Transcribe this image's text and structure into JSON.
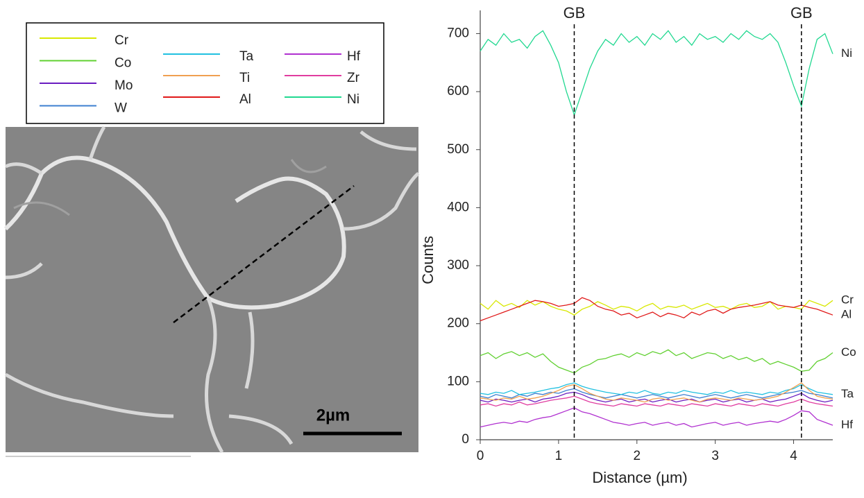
{
  "image": {
    "scale_bar": "2µm"
  },
  "chart_data": {
    "type": "line",
    "xlabel": "Distance (µm)",
    "ylabel": "Counts",
    "xlim": [
      0,
      4.5
    ],
    "xticks": [
      0,
      1,
      2,
      3,
      4
    ],
    "ylim": [
      0,
      740
    ],
    "yticks": [
      0,
      100,
      200,
      300,
      400,
      500,
      600,
      700
    ],
    "x": [
      0,
      0.1,
      0.2,
      0.3,
      0.4,
      0.5,
      0.6,
      0.7,
      0.8,
      0.9,
      1,
      1.1,
      1.2,
      1.3,
      1.4,
      1.5,
      1.6,
      1.7,
      1.8,
      1.9,
      2,
      2.1,
      2.2,
      2.3,
      2.4,
      2.5,
      2.6,
      2.7,
      2.8,
      2.9,
      3,
      3.1,
      3.2,
      3.3,
      3.4,
      3.5,
      3.6,
      3.7,
      3.8,
      3.9,
      4,
      4.1,
      4.2,
      4.3,
      4.4,
      4.5
    ],
    "annotations": [
      {
        "x": 1.2,
        "label": "GB"
      },
      {
        "x": 4.1,
        "label": "GB"
      }
    ],
    "end_labels": [
      "Ni",
      "Cr",
      "Al",
      "Co",
      "Ta",
      "Hf"
    ],
    "series": [
      {
        "name": "Cr",
        "color": "#d8e800",
        "values": [
          235,
          225,
          240,
          230,
          235,
          228,
          240,
          232,
          238,
          230,
          225,
          222,
          215,
          225,
          230,
          238,
          232,
          225,
          230,
          228,
          222,
          230,
          235,
          225,
          230,
          228,
          232,
          225,
          230,
          235,
          228,
          230,
          225,
          232,
          235,
          228,
          230,
          238,
          225,
          230,
          228,
          225,
          240,
          235,
          230,
          240
        ]
      },
      {
        "name": "Co",
        "color": "#60d030",
        "values": [
          145,
          150,
          140,
          148,
          152,
          145,
          150,
          142,
          148,
          135,
          125,
          120,
          115,
          125,
          130,
          138,
          140,
          145,
          148,
          142,
          150,
          145,
          152,
          148,
          155,
          145,
          150,
          140,
          145,
          150,
          148,
          140,
          145,
          138,
          142,
          135,
          140,
          130,
          135,
          130,
          125,
          118,
          120,
          135,
          140,
          150
        ]
      },
      {
        "name": "Mo",
        "color": "#6a1cc0",
        "values": [
          68,
          65,
          70,
          68,
          65,
          68,
          70,
          65,
          70,
          72,
          75,
          80,
          82,
          78,
          72,
          68,
          65,
          68,
          70,
          65,
          68,
          70,
          65,
          68,
          70,
          65,
          68,
          70,
          65,
          68,
          70,
          65,
          68,
          70,
          65,
          68,
          70,
          65,
          68,
          70,
          75,
          80,
          72,
          68,
          65,
          68
        ]
      },
      {
        "name": "W",
        "color": "#3c7fd0",
        "values": [
          75,
          72,
          78,
          75,
          72,
          78,
          75,
          80,
          78,
          82,
          80,
          85,
          88,
          82,
          78,
          75,
          72,
          75,
          78,
          75,
          72,
          75,
          78,
          75,
          72,
          75,
          78,
          75,
          72,
          75,
          78,
          75,
          72,
          75,
          78,
          75,
          72,
          75,
          78,
          80,
          82,
          85,
          80,
          78,
          75,
          72
        ]
      },
      {
        "name": "Ta",
        "color": "#20c0e0",
        "values": [
          80,
          78,
          82,
          80,
          85,
          78,
          80,
          82,
          85,
          88,
          90,
          95,
          98,
          92,
          88,
          85,
          82,
          80,
          78,
          82,
          80,
          85,
          80,
          78,
          82,
          80,
          85,
          82,
          80,
          78,
          82,
          80,
          85,
          80,
          82,
          80,
          78,
          82,
          80,
          85,
          88,
          95,
          88,
          82,
          80,
          78
        ]
      },
      {
        "name": "Ti",
        "color": "#f0a050",
        "values": [
          72,
          70,
          68,
          72,
          70,
          75,
          70,
          72,
          75,
          80,
          85,
          92,
          95,
          88,
          80,
          75,
          70,
          68,
          72,
          70,
          68,
          65,
          70,
          72,
          68,
          70,
          72,
          68,
          65,
          70,
          72,
          70,
          68,
          72,
          70,
          68,
          70,
          72,
          75,
          82,
          90,
          98,
          85,
          75,
          72,
          70
        ]
      },
      {
        "name": "Al",
        "color": "#e01818",
        "values": [
          205,
          210,
          215,
          220,
          225,
          230,
          235,
          240,
          238,
          235,
          230,
          232,
          235,
          245,
          240,
          230,
          225,
          222,
          215,
          218,
          210,
          215,
          220,
          212,
          218,
          215,
          210,
          220,
          215,
          222,
          225,
          218,
          225,
          228,
          230,
          232,
          235,
          238,
          232,
          230,
          228,
          232,
          228,
          225,
          220,
          215
        ]
      },
      {
        "name": "Hf",
        "color": "#b030d0",
        "values": [
          22,
          25,
          28,
          30,
          28,
          32,
          30,
          35,
          38,
          40,
          45,
          50,
          55,
          48,
          45,
          40,
          35,
          30,
          28,
          25,
          28,
          30,
          25,
          28,
          30,
          25,
          28,
          22,
          25,
          28,
          30,
          25,
          28,
          30,
          25,
          28,
          30,
          32,
          30,
          35,
          42,
          50,
          48,
          35,
          30,
          25
        ]
      },
      {
        "name": "Zr",
        "color": "#e03ca0",
        "values": [
          60,
          62,
          58,
          62,
          60,
          65,
          60,
          62,
          65,
          68,
          70,
          72,
          75,
          70,
          65,
          62,
          60,
          58,
          62,
          60,
          58,
          62,
          60,
          58,
          62,
          60,
          58,
          62,
          60,
          58,
          62,
          60,
          58,
          62,
          60,
          58,
          62,
          60,
          58,
          62,
          65,
          70,
          65,
          62,
          60,
          58
        ]
      },
      {
        "name": "Ni",
        "color": "#20d890",
        "values": [
          670,
          690,
          680,
          700,
          685,
          690,
          675,
          695,
          705,
          680,
          650,
          600,
          560,
          600,
          640,
          670,
          690,
          680,
          700,
          685,
          695,
          680,
          700,
          690,
          705,
          685,
          695,
          680,
          700,
          690,
          695,
          685,
          700,
          690,
          705,
          695,
          690,
          700,
          685,
          650,
          610,
          575,
          640,
          690,
          700,
          665
        ]
      }
    ]
  }
}
